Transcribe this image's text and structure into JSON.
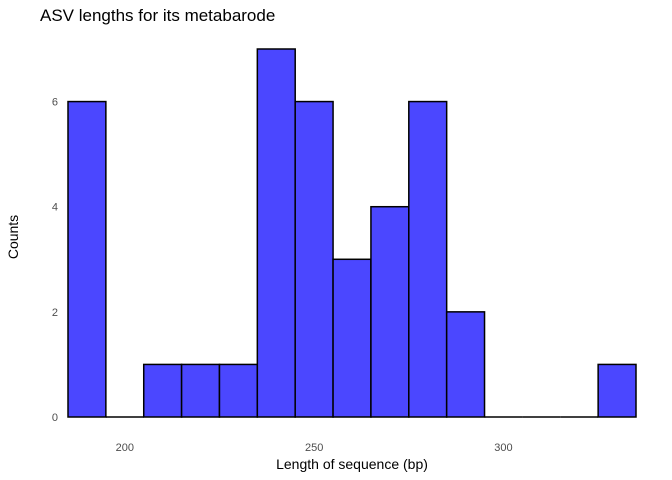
{
  "chart_data": {
    "type": "bar",
    "title": "ASV lengths for its metabarode",
    "xlabel": "Length of sequence (bp)",
    "ylabel": "Counts",
    "bin_width": 10,
    "bins": [
      {
        "x": 190,
        "count": 6
      },
      {
        "x": 200,
        "count": 0
      },
      {
        "x": 210,
        "count": 1
      },
      {
        "x": 220,
        "count": 1
      },
      {
        "x": 230,
        "count": 1
      },
      {
        "x": 240,
        "count": 7
      },
      {
        "x": 250,
        "count": 6
      },
      {
        "x": 260,
        "count": 3
      },
      {
        "x": 270,
        "count": 4
      },
      {
        "x": 280,
        "count": 6
      },
      {
        "x": 290,
        "count": 2
      },
      {
        "x": 300,
        "count": 0
      },
      {
        "x": 310,
        "count": 0
      },
      {
        "x": 320,
        "count": 0
      },
      {
        "x": 330,
        "count": 1
      }
    ],
    "xlim": [
      185,
      335
    ],
    "ylim": [
      0,
      7
    ],
    "x_ticks": [
      200,
      250,
      300
    ],
    "y_ticks": [
      0,
      2,
      4,
      6
    ],
    "grid": false,
    "bar_color": "#4b47ff",
    "bar_edge_color": "#000000"
  }
}
